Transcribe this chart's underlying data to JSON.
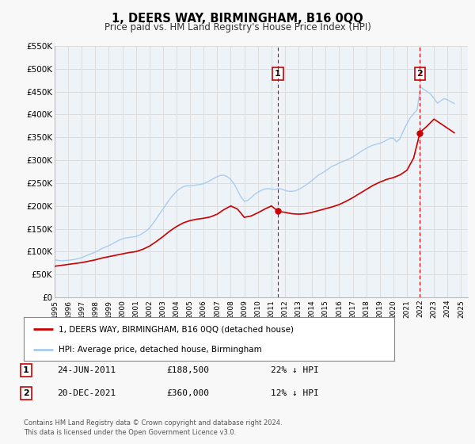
{
  "title": "1, DEERS WAY, BIRMINGHAM, B16 0QQ",
  "subtitle": "Price paid vs. HM Land Registry's House Price Index (HPI)",
  "legend_line1": "1, DEERS WAY, BIRMINGHAM, B16 0QQ (detached house)",
  "legend_line2": "HPI: Average price, detached house, Birmingham",
  "annotation1_date": "24-JUN-2011",
  "annotation1_price": "£188,500",
  "annotation1_pct": "22% ↓ HPI",
  "annotation2_date": "20-DEC-2021",
  "annotation2_price": "£360,000",
  "annotation2_pct": "12% ↓ HPI",
  "footnote1": "Contains HM Land Registry data © Crown copyright and database right 2024.",
  "footnote2": "This data is licensed under the Open Government Licence v3.0.",
  "sale1_x": 2011.48,
  "sale1_y": 188500,
  "sale2_x": 2021.96,
  "sale2_y": 360000,
  "vline1_x": 2011.48,
  "vline2_x": 2021.96,
  "red_line_color": "#cc0000",
  "blue_line_color": "#aaccee",
  "vline_color": "#cc0000",
  "grid_color": "#dddddd",
  "background_color": "#f8f8f8",
  "plot_bg_color": "#eef3f8",
  "ylim": [
    0,
    550000
  ],
  "xlim": [
    1995,
    2025.5
  ],
  "yticks": [
    0,
    50000,
    100000,
    150000,
    200000,
    250000,
    300000,
    350000,
    400000,
    450000,
    500000,
    550000
  ],
  "ytick_labels": [
    "£0",
    "£50K",
    "£100K",
    "£150K",
    "£200K",
    "£250K",
    "£300K",
    "£350K",
    "£400K",
    "£450K",
    "£500K",
    "£550K"
  ],
  "xticks": [
    1995,
    1996,
    1997,
    1998,
    1999,
    2000,
    2001,
    2002,
    2003,
    2004,
    2005,
    2006,
    2007,
    2008,
    2009,
    2010,
    2011,
    2012,
    2013,
    2014,
    2015,
    2016,
    2017,
    2018,
    2019,
    2020,
    2021,
    2022,
    2023,
    2024,
    2025
  ],
  "hpi_x": [
    1995.0,
    1995.25,
    1995.5,
    1995.75,
    1996.0,
    1996.25,
    1996.5,
    1996.75,
    1997.0,
    1997.25,
    1997.5,
    1997.75,
    1998.0,
    1998.25,
    1998.5,
    1998.75,
    1999.0,
    1999.25,
    1999.5,
    1999.75,
    2000.0,
    2000.25,
    2000.5,
    2000.75,
    2001.0,
    2001.25,
    2001.5,
    2001.75,
    2002.0,
    2002.25,
    2002.5,
    2002.75,
    2003.0,
    2003.25,
    2003.5,
    2003.75,
    2004.0,
    2004.25,
    2004.5,
    2004.75,
    2005.0,
    2005.25,
    2005.5,
    2005.75,
    2006.0,
    2006.25,
    2006.5,
    2006.75,
    2007.0,
    2007.25,
    2007.5,
    2007.75,
    2008.0,
    2008.25,
    2008.5,
    2008.75,
    2009.0,
    2009.25,
    2009.5,
    2009.75,
    2010.0,
    2010.25,
    2010.5,
    2010.75,
    2011.0,
    2011.25,
    2011.5,
    2011.75,
    2012.0,
    2012.25,
    2012.5,
    2012.75,
    2013.0,
    2013.25,
    2013.5,
    2013.75,
    2014.0,
    2014.25,
    2014.5,
    2014.75,
    2015.0,
    2015.25,
    2015.5,
    2015.75,
    2016.0,
    2016.25,
    2016.5,
    2016.75,
    2017.0,
    2017.25,
    2017.5,
    2017.75,
    2018.0,
    2018.25,
    2018.5,
    2018.75,
    2019.0,
    2019.25,
    2019.5,
    2019.75,
    2020.0,
    2020.25,
    2020.5,
    2020.75,
    2021.0,
    2021.25,
    2021.5,
    2021.75,
    2022.0,
    2022.25,
    2022.5,
    2022.75,
    2023.0,
    2023.25,
    2023.5,
    2023.75,
    2024.0,
    2024.25,
    2024.5
  ],
  "hpi_y": [
    82000,
    81000,
    80000,
    80500,
    81000,
    82000,
    83000,
    85000,
    87000,
    90000,
    93000,
    96000,
    99000,
    103000,
    107000,
    110000,
    113000,
    117000,
    121000,
    125000,
    128000,
    130000,
    131000,
    132000,
    133000,
    136000,
    140000,
    145000,
    152000,
    161000,
    172000,
    183000,
    193000,
    204000,
    215000,
    224000,
    232000,
    238000,
    242000,
    244000,
    244000,
    245000,
    246000,
    247000,
    249000,
    252000,
    256000,
    260000,
    264000,
    267000,
    267000,
    264000,
    258000,
    248000,
    234000,
    220000,
    210000,
    212000,
    218000,
    225000,
    230000,
    234000,
    237000,
    238000,
    237000,
    236000,
    238000,
    237000,
    234000,
    232000,
    232000,
    233000,
    236000,
    240000,
    245000,
    250000,
    256000,
    262000,
    268000,
    272000,
    277000,
    282000,
    287000,
    290000,
    294000,
    297000,
    300000,
    303000,
    307000,
    312000,
    317000,
    322000,
    326000,
    330000,
    333000,
    335000,
    337000,
    340000,
    344000,
    348000,
    348000,
    340000,
    348000,
    365000,
    380000,
    393000,
    402000,
    410000,
    460000,
    455000,
    450000,
    445000,
    435000,
    425000,
    430000,
    435000,
    432000,
    428000,
    424000
  ],
  "red_x": [
    1995.0,
    1995.5,
    1996.0,
    1996.5,
    1997.0,
    1997.5,
    1998.0,
    1998.5,
    1999.0,
    1999.5,
    2000.0,
    2000.5,
    2001.0,
    2001.5,
    2002.0,
    2002.5,
    2003.0,
    2003.5,
    2004.0,
    2004.5,
    2005.0,
    2005.5,
    2006.0,
    2006.5,
    2007.0,
    2007.5,
    2008.0,
    2008.5,
    2009.0,
    2009.5,
    2010.0,
    2010.5,
    2011.0,
    2011.48,
    2011.5,
    2012.0,
    2012.5,
    2013.0,
    2013.5,
    2014.0,
    2014.5,
    2015.0,
    2015.5,
    2016.0,
    2016.5,
    2017.0,
    2017.5,
    2018.0,
    2018.5,
    2019.0,
    2019.5,
    2020.0,
    2020.5,
    2021.0,
    2021.5,
    2021.96,
    2022.0,
    2022.5,
    2023.0,
    2023.5,
    2024.0,
    2024.5
  ],
  "red_y": [
    68000,
    70000,
    72000,
    74000,
    76000,
    79000,
    82000,
    86000,
    89000,
    92000,
    95000,
    98000,
    100000,
    105000,
    112000,
    122000,
    133000,
    145000,
    155000,
    163000,
    168000,
    171000,
    173000,
    176000,
    182000,
    192000,
    200000,
    193000,
    175000,
    178000,
    185000,
    193000,
    200000,
    188500,
    188000,
    186000,
    183000,
    182000,
    183000,
    186000,
    190000,
    194000,
    198000,
    203000,
    210000,
    218000,
    227000,
    236000,
    245000,
    252000,
    258000,
    262000,
    268000,
    278000,
    305000,
    360000,
    362000,
    375000,
    390000,
    380000,
    370000,
    360000
  ]
}
